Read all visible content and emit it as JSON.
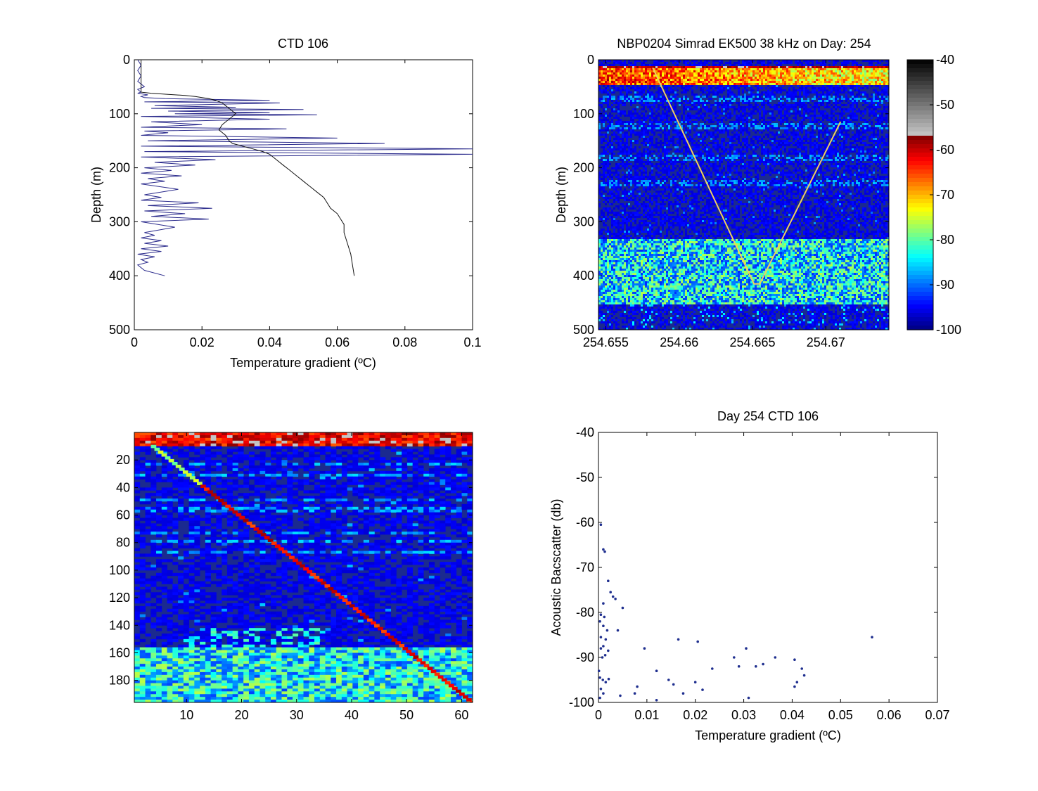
{
  "colors": {
    "background": "#ffffff",
    "line": "#1f1f7a",
    "marker": "#1f2f8f",
    "colormap_low": "#1b2a8f",
    "colormap_high": "#000000"
  },
  "chart_data": [
    {
      "id": "ctd-profile",
      "type": "line",
      "title": "CTD 106",
      "xlabel": "Temperature gradient (ºC)",
      "ylabel": "Depth (m)",
      "xlim": [
        0,
        0.1
      ],
      "ylim": [
        0,
        500
      ],
      "y_reversed": true,
      "xticks": [
        "0",
        "0.02",
        "0.04",
        "0.06",
        "0.08",
        "0.1"
      ],
      "yticks": [
        "0",
        "100",
        "200",
        "300",
        "400",
        "500"
      ],
      "series": [
        {
          "role": "gradient",
          "x": [
            0.001,
            0.002,
            0.001,
            0.002,
            0.001,
            0.003,
            0.001,
            0.002,
            0.001,
            0.004,
            0.002,
            0.003,
            0.009,
            0.04,
            0.003,
            0.043,
            0.006,
            0.03,
            0.005,
            0.05,
            0.01,
            0.04,
            0.012,
            0.054,
            0.002,
            0.04,
            0.005,
            0.02,
            0.002,
            0.045,
            0.003,
            0.01,
            0.002,
            0.06,
            0.004,
            0.074,
            0.002,
            0.1,
            0.003,
            0.1,
            0.002,
            0.024,
            0.006,
            0.018,
            0.003,
            0.011,
            0.002,
            0.014,
            0.004,
            0.009,
            0.002,
            0.013,
            0.003,
            0.008,
            0.002,
            0.019,
            0.004,
            0.023,
            0.003,
            0.015,
            0.005,
            0.022,
            0.002,
            0.012,
            0.003,
            0.006,
            0.002,
            0.008,
            0.003,
            0.01,
            0.002,
            0.008,
            0.001,
            0.006,
            0.002,
            0.004,
            0.001,
            0.003,
            0.009
          ],
          "y": [
            0,
            10,
            20,
            30,
            40,
            50,
            55,
            60,
            62,
            65,
            68,
            70,
            72,
            75,
            78,
            80,
            85,
            88,
            90,
            92,
            95,
            98,
            100,
            102,
            105,
            110,
            115,
            120,
            125,
            128,
            132,
            135,
            140,
            145,
            150,
            155,
            160,
            165,
            170,
            175,
            180,
            185,
            190,
            195,
            200,
            205,
            210,
            215,
            220,
            225,
            230,
            240,
            250,
            255,
            260,
            265,
            270,
            275,
            280,
            285,
            290,
            295,
            300,
            310,
            320,
            325,
            330,
            335,
            340,
            345,
            350,
            355,
            360,
            365,
            370,
            375,
            380,
            390,
            400
          ]
        },
        {
          "role": "temperature-profile",
          "x": [
            0.002,
            0.002,
            0.002,
            0.002,
            0.002,
            0.002,
            0.005,
            0.01,
            0.015,
            0.018,
            0.02,
            0.022,
            0.024,
            0.026,
            0.027,
            0.028,
            0.029,
            0.03,
            0.028,
            0.026,
            0.025,
            0.027,
            0.028,
            0.029,
            0.032,
            0.035,
            0.038,
            0.04,
            0.042,
            0.044,
            0.046,
            0.048,
            0.05,
            0.052,
            0.054,
            0.056,
            0.057,
            0.058,
            0.06,
            0.061,
            0.062,
            0.062,
            0.063,
            0.064,
            0.0645,
            0.065
          ],
          "y": [
            0,
            20,
            40,
            50,
            55,
            60,
            62,
            64,
            66,
            68,
            70,
            72,
            75,
            80,
            85,
            90,
            95,
            100,
            110,
            120,
            130,
            140,
            150,
            155,
            160,
            165,
            170,
            175,
            185,
            195,
            205,
            215,
            225,
            235,
            245,
            255,
            265,
            275,
            285,
            295,
            305,
            320,
            340,
            360,
            380,
            400
          ]
        }
      ]
    },
    {
      "id": "echogram-full",
      "type": "heatmap",
      "title": "NBP0204 Simrad EK500 38 kHz on Day:  254",
      "xlabel": "",
      "ylabel": "Depth (m)",
      "xlim": [
        254.6545,
        254.6743
      ],
      "ylim": [
        0,
        500
      ],
      "y_reversed": true,
      "xticks": [
        "254.655",
        "254.66",
        "254.665",
        "254.67"
      ],
      "yticks": [
        "0",
        "100",
        "200",
        "300",
        "400",
        "500"
      ],
      "colorbar": {
        "range": [
          -100,
          -40
        ],
        "ticks": [
          "-40",
          "-50",
          "-60",
          "-70",
          "-80",
          "-90",
          "-100"
        ]
      },
      "features": {
        "surface_layer_depth": [
          10,
          45
        ],
        "scattering_bands_depth": [
          70,
          120,
          180,
          225
        ],
        "deep_layer_depth": [
          330,
          450
        ],
        "ctd_track_x": [
          254.6582,
          254.6651,
          254.6655,
          254.671
        ],
        "ctd_track_y": [
          15,
          415,
          415,
          115
        ]
      }
    },
    {
      "id": "echogram-zoom",
      "type": "heatmap",
      "title": "",
      "xlabel": "",
      "ylabel": "",
      "xlim": [
        0.5,
        62
      ],
      "ylim": [
        0,
        196
      ],
      "y_reversed": true,
      "xticks": [
        "10",
        "20",
        "30",
        "40",
        "50",
        "60"
      ],
      "yticks": [
        "20",
        "40",
        "60",
        "80",
        "100",
        "120",
        "140",
        "160",
        "180"
      ],
      "features": {
        "surface_layer_rows": [
          0,
          8
        ],
        "bands_rows": [
          22,
          30,
          48,
          55,
          72,
          78,
          86
        ],
        "deep_layer_rows": [
          155,
          196
        ],
        "diagonal_start": [
          4,
          10
        ],
        "diagonal_end": [
          62,
          196
        ]
      }
    },
    {
      "id": "scatter-backscatter",
      "type": "scatter",
      "title": "Day 254 CTD 106",
      "xlabel": "Temperature gradient (ºC)",
      "ylabel": "Acoustic Bacscatter (db)",
      "xlim": [
        0,
        0.07
      ],
      "ylim": [
        -100,
        -40
      ],
      "xticks": [
        "0",
        "0.01",
        "0.02",
        "0.03",
        "0.04",
        "0.05",
        "0.06",
        "0.07"
      ],
      "yticks": [
        "-40",
        "-50",
        "-60",
        "-70",
        "-80",
        "-90",
        "-100"
      ],
      "points": [
        [
          0.0005,
          -60.5
        ],
        [
          0.001,
          -66
        ],
        [
          0.0013,
          -66.5
        ],
        [
          0.002,
          -73
        ],
        [
          0.0025,
          -75.5
        ],
        [
          0.001,
          -78
        ],
        [
          0.0005,
          -80.5
        ],
        [
          0.0012,
          -81
        ],
        [
          0.0003,
          -82
        ],
        [
          0.001,
          -83
        ],
        [
          0.0018,
          -84
        ],
        [
          0.0005,
          -85.5
        ],
        [
          0.0015,
          -86
        ],
        [
          0.001,
          -87.5
        ],
        [
          0.0005,
          -88
        ],
        [
          0.0008,
          -90
        ],
        [
          0.0014,
          -89.5
        ],
        [
          0.002,
          -88.5
        ],
        [
          0.0001,
          -93
        ],
        [
          0.0003,
          -94.5
        ],
        [
          0.0009,
          -95
        ],
        [
          0.0015,
          -95.5
        ],
        [
          0.0021,
          -94.8
        ],
        [
          0.0005,
          -97
        ],
        [
          0.001,
          -98
        ],
        [
          0.0003,
          -99
        ],
        [
          0.003,
          -76.5
        ],
        [
          0.0035,
          -77
        ],
        [
          0.005,
          -79
        ],
        [
          0.004,
          -84
        ],
        [
          0.0045,
          -98.5
        ],
        [
          0.0075,
          -98
        ],
        [
          0.008,
          -96.5
        ],
        [
          0.0095,
          -88
        ],
        [
          0.012,
          -93
        ],
        [
          0.012,
          -99.5
        ],
        [
          0.0145,
          -95
        ],
        [
          0.0155,
          -96
        ],
        [
          0.0165,
          -86
        ],
        [
          0.0175,
          -98
        ],
        [
          0.0205,
          -86.5
        ],
        [
          0.02,
          -95.5
        ],
        [
          0.0215,
          -97.2
        ],
        [
          0.0235,
          -92.5
        ],
        [
          0.028,
          -90
        ],
        [
          0.029,
          -92
        ],
        [
          0.0305,
          -88
        ],
        [
          0.031,
          -99
        ],
        [
          0.0325,
          -92
        ],
        [
          0.034,
          -91.5
        ],
        [
          0.0365,
          -90
        ],
        [
          0.0405,
          -90.5
        ],
        [
          0.042,
          -92.5
        ],
        [
          0.0425,
          -94
        ],
        [
          0.041,
          -95.5
        ],
        [
          0.0405,
          -96.5
        ],
        [
          0.0565,
          -85.5
        ]
      ]
    }
  ]
}
